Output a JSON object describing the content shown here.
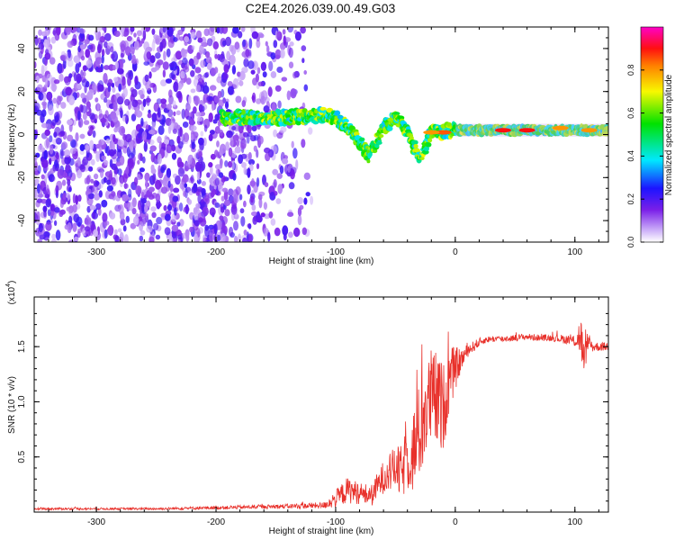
{
  "title": "C2E4.2026.039.00.49.G03",
  "colors": {
    "trace": "#e8302a",
    "spectrum_low": "#7a1fe8",
    "axis": "#000000"
  },
  "chart_data": [
    {
      "id": "spectrogram",
      "type": "heatmap",
      "title": "",
      "xlabel": "Height of straight line (km)",
      "ylabel": "Frequency (Hz)",
      "xlim": [
        -352,
        128
      ],
      "ylim": [
        -50,
        50
      ],
      "xticks": [
        -300,
        -200,
        -100,
        0,
        100
      ],
      "yticks": [
        -40,
        -20,
        0,
        20,
        40
      ],
      "colorbar": {
        "label": "Normalized spectral amplitude",
        "range": [
          0,
          1
        ],
        "ticks": [
          "0.0",
          "0.2",
          "0.4",
          "0.6",
          "0.8"
        ],
        "tick_values": [
          0,
          0.2,
          0.4,
          0.6,
          0.8
        ]
      },
      "regions": [
        {
          "name": "noise",
          "x_range": [
            -352,
            -120
          ],
          "f_range": [
            -50,
            50
          ],
          "amplitude": 0.15
        },
        {
          "name": "signal",
          "x_range": [
            -195,
            128
          ],
          "amplitude": 0.35
        }
      ],
      "centerline": {
        "x": [
          -195,
          -170,
          -140,
          -110,
          -100,
          -92,
          -85,
          -78,
          -72,
          -60,
          -50,
          -40,
          -30,
          -20,
          0,
          30,
          60,
          90,
          128
        ],
        "f": [
          8,
          8,
          8,
          9,
          8,
          4,
          0,
          -5,
          -10,
          3,
          8,
          2,
          -12,
          1,
          2,
          2,
          2,
          2,
          2
        ]
      },
      "hot_spots": [
        {
          "x": 40,
          "f": 2,
          "amplitude": 0.9
        },
        {
          "x": 60,
          "f": 2,
          "amplitude": 0.9
        },
        {
          "x": 88,
          "f": 3,
          "amplitude": 0.8
        },
        {
          "x": 112,
          "f": 2,
          "amplitude": 0.8
        },
        {
          "x": -10,
          "f": 1,
          "amplitude": 0.85
        },
        {
          "x": -20,
          "f": 1,
          "amplitude": 0.8
        }
      ]
    },
    {
      "id": "snr",
      "type": "line",
      "title": "",
      "xlabel": "Height of straight line (km)",
      "ylabel": "SNR (10 * v/v)",
      "y_multiplier_label": "(x10",
      "y_multiplier_exp": "4",
      "xlim": [
        -352,
        128
      ],
      "ylim": [
        0,
        1.95
      ],
      "xticks": [
        -300,
        -200,
        -100,
        0,
        100
      ],
      "yticks": [
        0.5,
        1.0,
        1.5
      ],
      "ytick_labels": [
        "0.5",
        "1.0",
        "1.5"
      ],
      "series": [
        {
          "name": "SNR",
          "x": [
            -352,
            -250,
            -150,
            -110,
            -100,
            -90,
            -80,
            -70,
            -60,
            -50,
            -45,
            -40,
            -35,
            -30,
            -25,
            -20,
            -15,
            -10,
            -5,
            0,
            5,
            10,
            15,
            20,
            25,
            30,
            40,
            50,
            60,
            70,
            80,
            90,
            100,
            105,
            108,
            110,
            115,
            120,
            128
          ],
          "values": [
            0.03,
            0.03,
            0.05,
            0.06,
            0.12,
            0.2,
            0.17,
            0.15,
            0.32,
            0.4,
            0.35,
            0.5,
            0.55,
            0.72,
            0.9,
            1.05,
            1.0,
            0.95,
            1.2,
            1.3,
            1.38,
            1.46,
            1.5,
            1.54,
            1.56,
            1.57,
            1.57,
            1.58,
            1.59,
            1.58,
            1.58,
            1.57,
            1.55,
            1.6,
            1.3,
            1.55,
            1.5,
            1.5,
            1.5
          ],
          "noise_amplitude": [
            0.01,
            0.01,
            0.02,
            0.03,
            0.08,
            0.12,
            0.1,
            0.1,
            0.15,
            0.2,
            0.25,
            0.3,
            0.4,
            0.45,
            0.45,
            0.45,
            0.45,
            0.4,
            0.3,
            0.2,
            0.1,
            0.06,
            0.05,
            0.04,
            0.03,
            0.03,
            0.03,
            0.03,
            0.03,
            0.03,
            0.03,
            0.04,
            0.05,
            0.2,
            0.2,
            0.08,
            0.05,
            0.04,
            0.04
          ]
        }
      ]
    }
  ]
}
